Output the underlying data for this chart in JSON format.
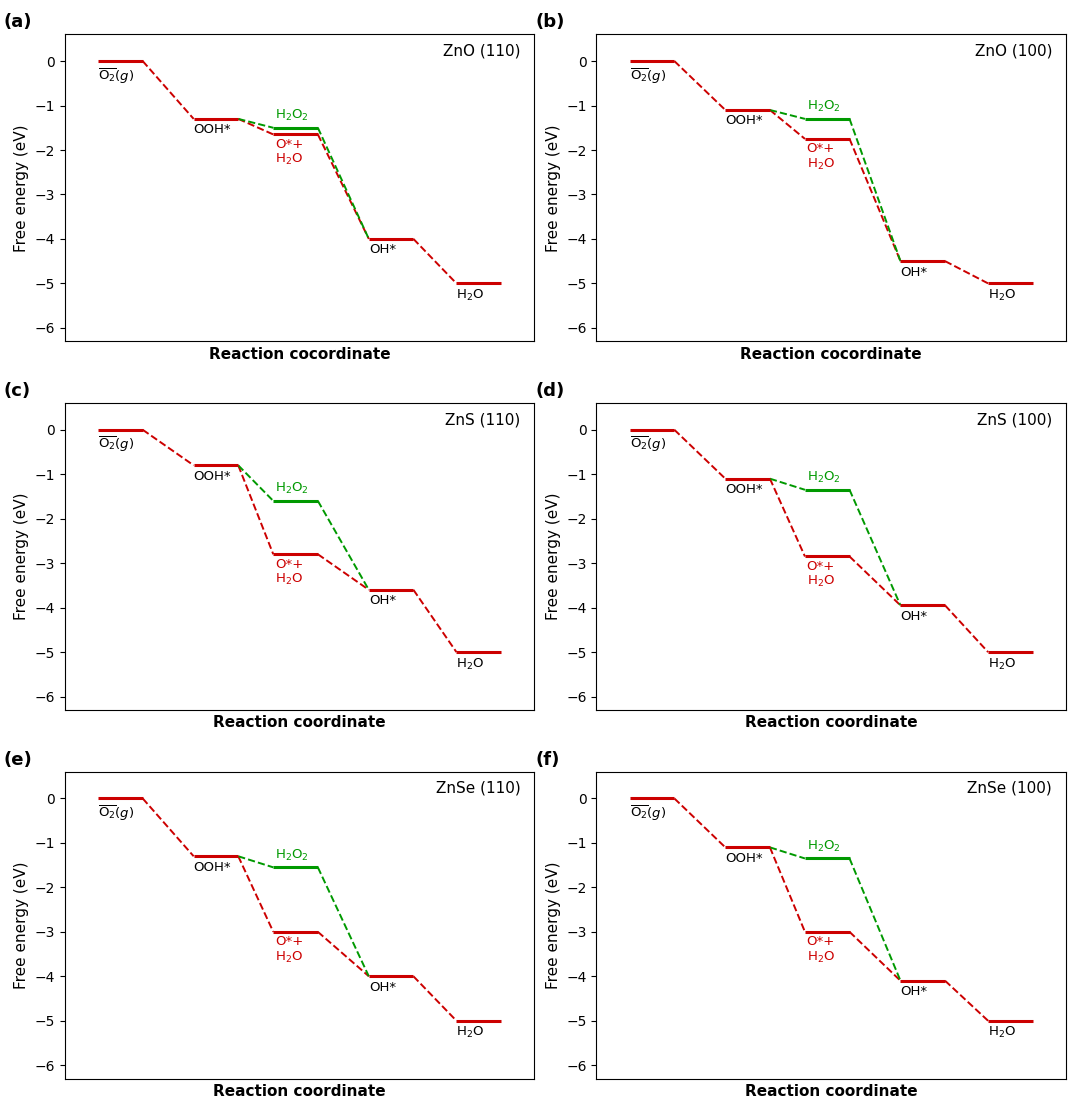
{
  "panels": [
    {
      "label": "(a)",
      "title": "ZnO (110)",
      "xlabel": "Reaction cocordinate",
      "E_O2g": 0.0,
      "E_OOH": -1.3,
      "E_H2O2": -1.5,
      "E_OHO": -1.65,
      "E_OH": -4.0,
      "E_H2O": -5.0
    },
    {
      "label": "(b)",
      "title": "ZnO (100)",
      "xlabel": "Reaction cocordinate",
      "E_O2g": 0.0,
      "E_OOH": -1.1,
      "E_H2O2": -1.3,
      "E_OHO": -1.75,
      "E_OH": -4.5,
      "E_H2O": -5.0
    },
    {
      "label": "(c)",
      "title": "ZnS (110)",
      "xlabel": "Reaction coordinate",
      "E_O2g": 0.0,
      "E_OOH": -0.8,
      "E_H2O2": -1.6,
      "E_OHO": -2.8,
      "E_OH": -3.6,
      "E_H2O": -5.0
    },
    {
      "label": "(d)",
      "title": "ZnS (100)",
      "xlabel": "Reaction coordinate",
      "E_O2g": 0.0,
      "E_OOH": -1.1,
      "E_H2O2": -1.35,
      "E_OHO": -2.85,
      "E_OH": -3.95,
      "E_H2O": -5.0
    },
    {
      "label": "(e)",
      "title": "ZnSe (110)",
      "xlabel": "Reaction coordinate",
      "E_O2g": 0.0,
      "E_OOH": -1.3,
      "E_H2O2": -1.55,
      "E_OHO": -3.0,
      "E_OH": -4.0,
      "E_H2O": -5.0
    },
    {
      "label": "(f)",
      "title": "ZnSe (100)",
      "xlabel": "Reaction coordinate",
      "E_O2g": 0.0,
      "E_OOH": -1.1,
      "E_H2O2": -1.35,
      "E_OHO": -3.0,
      "E_OH": -4.1,
      "E_H2O": -5.0
    }
  ],
  "red_color": "#cc0000",
  "green_color": "#009900",
  "ylabel": "Free energy (eV)",
  "ylim": [
    -6.3,
    0.6
  ],
  "yticks": [
    0,
    -1,
    -2,
    -3,
    -4,
    -5,
    -6
  ],
  "background_color": "#ffffff",
  "linewidth": 2.2,
  "dashed_linewidth": 1.4,
  "label_fontsize": 9.5,
  "title_fontsize": 11,
  "axis_label_fontsize": 11,
  "tick_fontsize": 10,
  "sw": 0.28
}
